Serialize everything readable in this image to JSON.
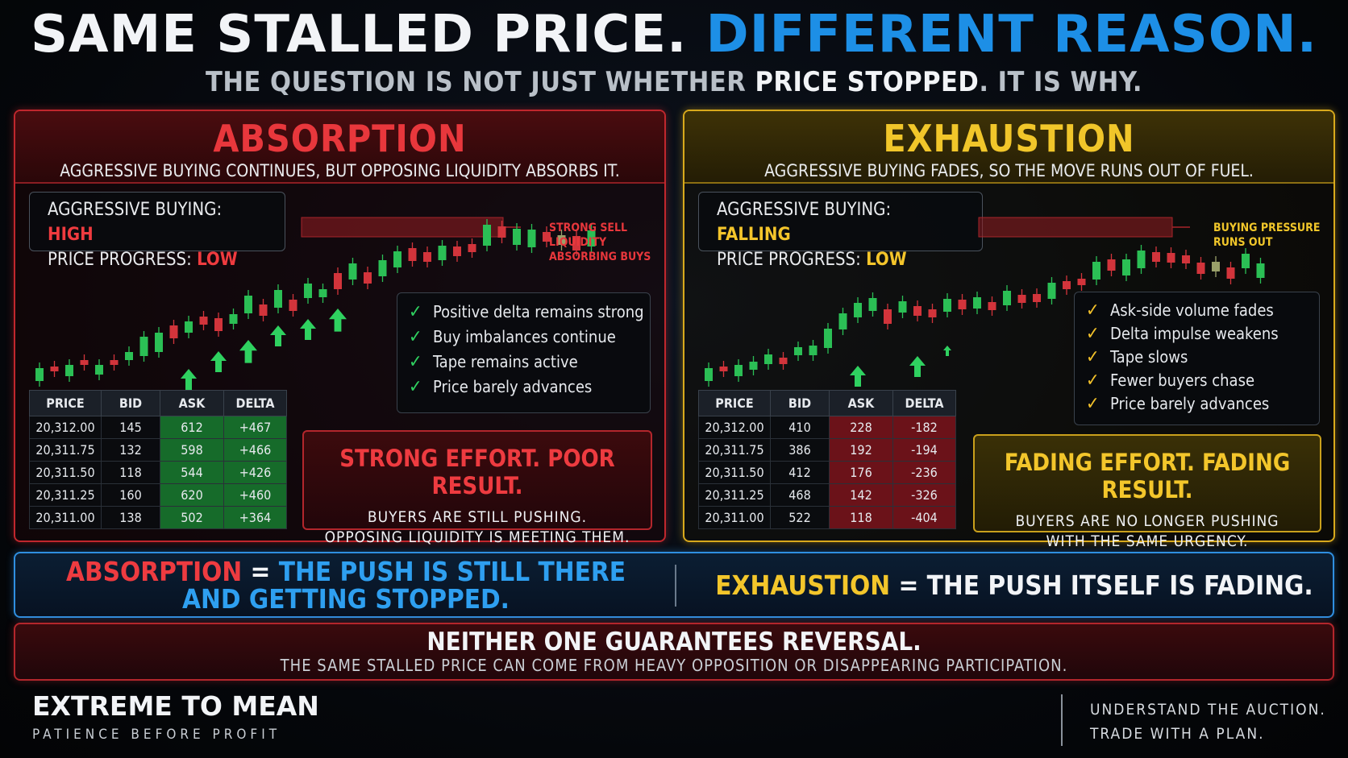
{
  "header": {
    "title_white": "SAME STALLED PRICE.",
    "title_blue": "DIFFERENT REASON.",
    "subtitle_a": "THE QUESTION IS NOT JUST WHETHER ",
    "subtitle_b": "PRICE STOPPED",
    "subtitle_c": ". IT IS WHY."
  },
  "absorption": {
    "title": "ABSORPTION",
    "subtitle": "AGGRESSIVE BUYING CONTINUES, BUT OPPOSING LIQUIDITY ABSORBS IT.",
    "stat1_label": "AGGRESSIVE BUYING:",
    "stat1_value": "HIGH",
    "stat2_label": "PRICE PROGRESS:",
    "stat2_value": "LOW",
    "annotation": [
      "STRONG SELL",
      "LIQUIDITY",
      "ABSORBING BUYS"
    ],
    "checks": [
      "Positive delta remains strong",
      "Buy imbalances continue",
      "Tape remains active",
      "Price barely advances"
    ],
    "table": {
      "headers": [
        "PRICE",
        "BID",
        "ASK",
        "DELTA"
      ],
      "rows": [
        [
          "20,312.00",
          "145",
          "612",
          "+467"
        ],
        [
          "20,311.75",
          "132",
          "598",
          "+466"
        ],
        [
          "20,311.50",
          "118",
          "544",
          "+426"
        ],
        [
          "20,311.25",
          "160",
          "620",
          "+460"
        ],
        [
          "20,311.00",
          "138",
          "502",
          "+364"
        ]
      ]
    },
    "callout_title": "STRONG EFFORT. POOR RESULT.",
    "callout_line1": "BUYERS ARE STILL PUSHING.",
    "callout_line2": "OPPOSING LIQUIDITY IS MEETING THEM."
  },
  "exhaustion": {
    "title": "EXHAUSTION",
    "subtitle": "AGGRESSIVE BUYING FADES, SO THE MOVE RUNS OUT OF FUEL.",
    "stat1_label": "AGGRESSIVE BUYING:",
    "stat1_value": "FALLING",
    "stat2_label": "PRICE PROGRESS:",
    "stat2_value": "LOW",
    "annotation": [
      "BUYING PRESSURE",
      "RUNS OUT"
    ],
    "checks": [
      "Ask-side volume fades",
      "Delta impulse weakens",
      "Tape slows",
      "Fewer buyers chase",
      "Price barely advances"
    ],
    "table": {
      "headers": [
        "PRICE",
        "BID",
        "ASK",
        "DELTA"
      ],
      "rows": [
        [
          "20,312.00",
          "410",
          "228",
          "-182"
        ],
        [
          "20,311.75",
          "386",
          "192",
          "-194"
        ],
        [
          "20,311.50",
          "412",
          "176",
          "-236"
        ],
        [
          "20,311.25",
          "468",
          "142",
          "-326"
        ],
        [
          "20,311.00",
          "522",
          "118",
          "-404"
        ]
      ]
    },
    "callout_title": "FADING EFFORT. FADING RESULT.",
    "callout_line1": "BUYERS ARE NO LONGER PUSHING",
    "callout_line2": "WITH THE SAME URGENCY."
  },
  "compare": {
    "left_word": "ABSORPTION",
    "left_eq": " = ",
    "left_text1": "THE PUSH IS STILL THERE",
    "left_text2": "AND GETTING STOPPED.",
    "right_word": "EXHAUSTION",
    "right_eq": " = ",
    "right_text": "THE PUSH ITSELF IS FADING."
  },
  "neither": {
    "title": "NEITHER ONE GUARANTEES REVERSAL.",
    "subtitle": "THE SAME STALLED PRICE CAN COME FROM HEAVY OPPOSITION OR DISAPPEARING PARTICIPATION."
  },
  "footer": {
    "brand": "EXTREME TO MEAN",
    "brand_sub": "PATIENCE BEFORE PROFIT",
    "tagline1": "UNDERSTAND THE AUCTION.",
    "tagline2": "TRADE WITH A PLAN."
  },
  "colors": {
    "red": "#e8373c",
    "gold": "#f1c62a",
    "blue": "#1d8fe6",
    "green": "#2fd160"
  }
}
